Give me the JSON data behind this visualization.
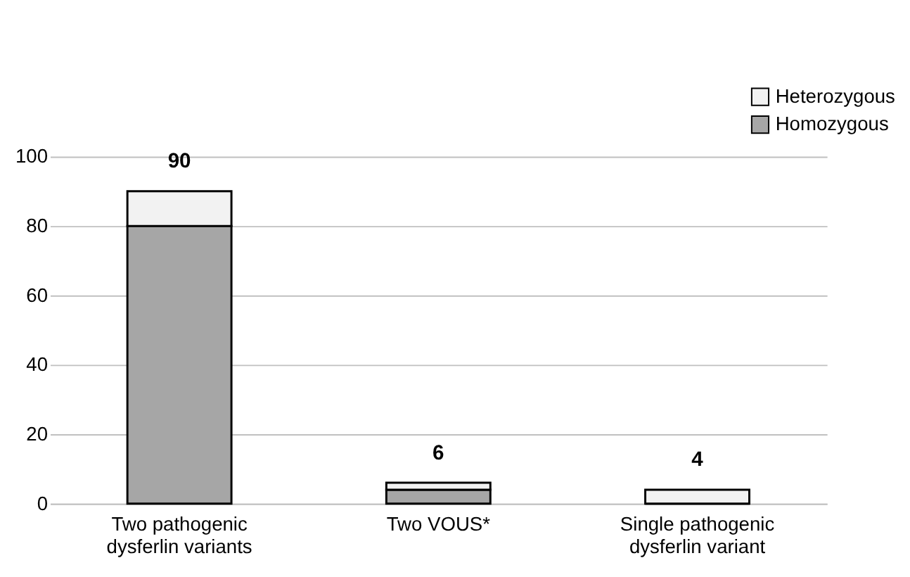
{
  "chart_data": {
    "type": "bar",
    "stacked": true,
    "categories": [
      "Two pathogenic dysferlin variants",
      "Two VOUS*",
      "Single pathogenic dysferlin variant"
    ],
    "series": [
      {
        "name": "Homozygous",
        "color": "#a6a6a6",
        "values": [
          80,
          4,
          0
        ]
      },
      {
        "name": "Heterozygous",
        "color": "#f2f2f2",
        "values": [
          10,
          2,
          4
        ]
      }
    ],
    "totals": [
      "90",
      "6",
      "4"
    ],
    "ylim": [
      0,
      100
    ],
    "yticks": [
      0,
      20,
      40,
      60,
      80,
      100
    ],
    "grid": "y",
    "legend": "top right"
  }
}
